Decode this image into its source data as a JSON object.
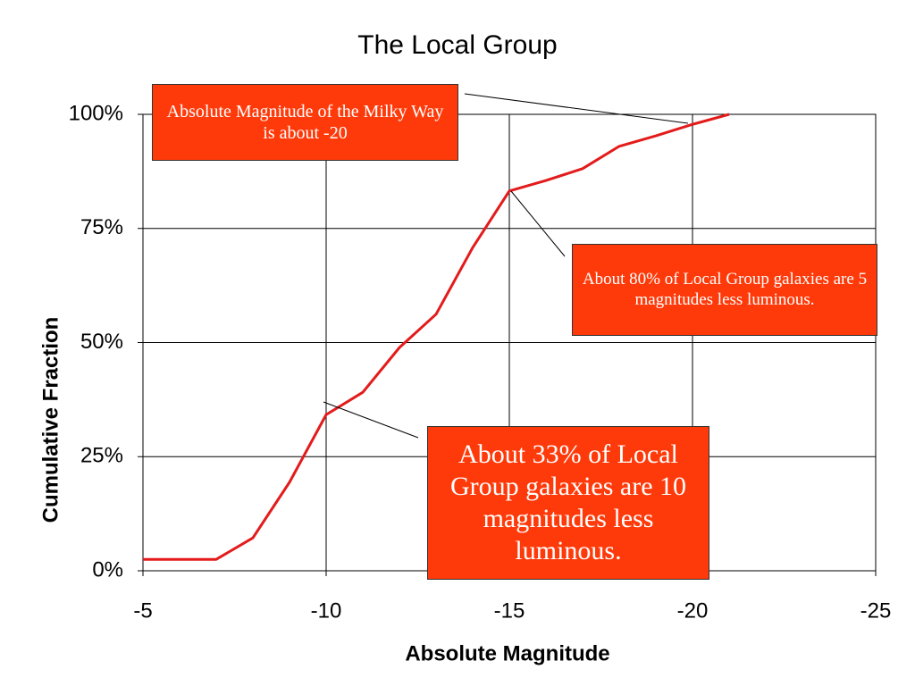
{
  "chart_data": {
    "type": "line",
    "title": "The Local Group",
    "x_label": "Absolute Magnitude",
    "y_label": "Cumulative Fraction",
    "x": [
      -5,
      -7,
      -8,
      -9,
      -10,
      -11,
      -12,
      -13,
      -14,
      -15,
      -16,
      -17,
      -18,
      -19,
      -20,
      -21
    ],
    "series": [
      {
        "name": "Local Group",
        "color": "#e31b1b",
        "values": [
          2.5,
          2.5,
          7.2,
          19.4,
          34.2,
          39.1,
          48.9,
          56.2,
          70.8,
          83.2,
          85.5,
          88.1,
          93,
          95.3,
          97.8,
          100
        ]
      }
    ],
    "xlim": [
      -5,
      -25
    ],
    "xticks": [
      -5,
      -10,
      -15,
      -20,
      -25
    ],
    "ylim": [
      0,
      100
    ],
    "yticks": [
      {
        "value": 0,
        "label": "0%"
      },
      {
        "value": 25,
        "label": "25%"
      },
      {
        "value": 50,
        "label": "50%"
      },
      {
        "value": 75,
        "label": "75%"
      },
      {
        "value": 100,
        "label": "100%"
      }
    ],
    "grid": true,
    "annotations": [
      "Absolute Magnitude of the Milky Way is about -20",
      "About 80% of Local Group galaxies are 5 magnitudes less luminous.",
      "About 33% of Local Group galaxies are 10 magnitudes less luminous."
    ]
  }
}
